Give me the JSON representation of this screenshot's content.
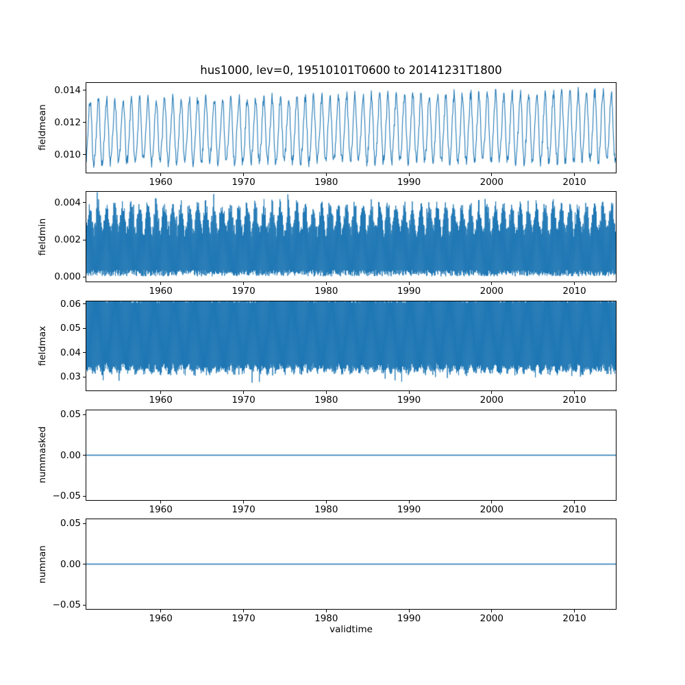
{
  "figure": {
    "title": "hus1000, lev=0, 19510101T0600 to 20141231T1800",
    "xlabel": "validtime",
    "x_range": [
      1951,
      2015
    ],
    "xticks": [
      {
        "value": 1960,
        "label": "1960"
      },
      {
        "value": 1970,
        "label": "1970"
      },
      {
        "value": 1980,
        "label": "1980"
      },
      {
        "value": 1990,
        "label": "1990"
      },
      {
        "value": 2000,
        "label": "2000"
      },
      {
        "value": 2010,
        "label": "2010"
      }
    ],
    "line_color": "#1f77b4",
    "frame_color": "#000000",
    "text_color": "#000000",
    "background": "#ffffff"
  },
  "chart_data": [
    {
      "type": "line",
      "ylabel": "fieldmean",
      "ylim": [
        0.00887,
        0.01446
      ],
      "yticks": [
        {
          "value": 0.01,
          "label": "0.010"
        },
        {
          "value": 0.012,
          "label": "0.012"
        },
        {
          "value": 0.014,
          "label": "0.014"
        }
      ],
      "series": {
        "name": "fieldmean",
        "pattern": "annual-cycle-line",
        "points_per_year": 20,
        "base": 0.01135,
        "trend_total": 0.0003,
        "seasonal_amplitude": 0.0019,
        "noise": 0.00035,
        "approx_min": 0.0092,
        "approx_max": 0.0145,
        "seed": 101
      }
    },
    {
      "type": "line",
      "ylabel": "fieldmin",
      "ylim": [
        -0.00026,
        0.00457
      ],
      "yticks": [
        {
          "value": 0.0,
          "label": "0.000"
        },
        {
          "value": 0.002,
          "label": "0.002"
        },
        {
          "value": 0.004,
          "label": "0.004"
        }
      ],
      "series": {
        "name": "fieldmin",
        "pattern": "dense-oscillation",
        "n_points": 1600,
        "flat_base": 2e-05,
        "flat_noise": 0.00035,
        "var_base": 0.0028,
        "var_seasonal": 0.0007,
        "var_noise": 0.0007,
        "spike_prob": 0.05,
        "spike": 0.0007,
        "approx_min": 0.0,
        "approx_max": 0.0046,
        "seed": 202
      }
    },
    {
      "type": "line",
      "ylabel": "fieldmax",
      "ylim": [
        0.02432,
        0.06122
      ],
      "yticks": [
        {
          "value": 0.03,
          "label": "0.03"
        },
        {
          "value": 0.04,
          "label": "0.04"
        },
        {
          "value": 0.05,
          "label": "0.05"
        },
        {
          "value": 0.06,
          "label": "0.06"
        }
      ],
      "series": {
        "name": "fieldmax",
        "pattern": "dense-oscillation",
        "n_points": 1600,
        "flat_base": 0.0605,
        "flat_noise": 0.005,
        "var_base": 0.0319,
        "var_seasonal": 0.0012,
        "var_noise": 0.0028,
        "spike_prob": 0.03,
        "spike": -0.005,
        "approx_min": 0.026,
        "approx_max": 0.06,
        "seed": 303
      }
    },
    {
      "type": "line",
      "ylabel": "nummasked",
      "ylim": [
        -0.055,
        0.055
      ],
      "yticks": [
        {
          "value": -0.05,
          "label": "−0.05"
        },
        {
          "value": 0.0,
          "label": "0.00"
        },
        {
          "value": 0.05,
          "label": "0.05"
        }
      ],
      "series": {
        "name": "nummasked",
        "pattern": "constant",
        "value": 0
      }
    },
    {
      "type": "line",
      "ylabel": "numnan",
      "ylim": [
        -0.055,
        0.055
      ],
      "yticks": [
        {
          "value": -0.05,
          "label": "−0.05"
        },
        {
          "value": 0.0,
          "label": "0.00"
        },
        {
          "value": 0.05,
          "label": "0.05"
        }
      ],
      "series": {
        "name": "numnan",
        "pattern": "constant",
        "value": 0
      }
    }
  ]
}
